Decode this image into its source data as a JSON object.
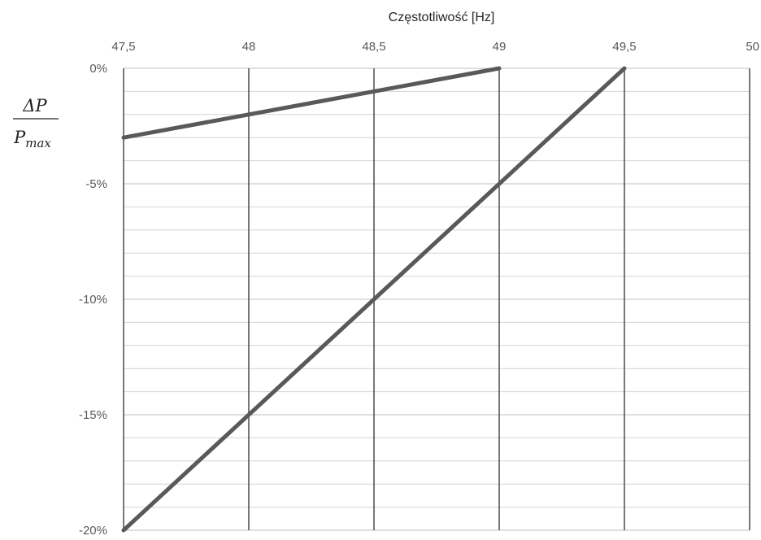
{
  "chart_data": {
    "type": "line",
    "xlabel": "Częstotliwość [Hz]",
    "ylabel": {
      "numerator": "ΔP",
      "denominator_base": "P",
      "denominator_sub": "max"
    },
    "x_axis_position": "top",
    "xlim": [
      47.5,
      50
    ],
    "ylim": [
      -20,
      0
    ],
    "x_ticks": [
      "47,5",
      "48",
      "48,5",
      "49",
      "49,5",
      "50"
    ],
    "y_ticks": [
      "0%",
      "-5%",
      "-10%",
      "-15%",
      "-20%"
    ],
    "grid": true,
    "legend": "none",
    "series": [
      {
        "x": [
          47.5,
          49.0
        ],
        "y": [
          -3,
          0
        ],
        "color": "#595959"
      },
      {
        "x": [
          47.5,
          49.5
        ],
        "y": [
          -20,
          0
        ],
        "color": "#595959"
      }
    ]
  }
}
